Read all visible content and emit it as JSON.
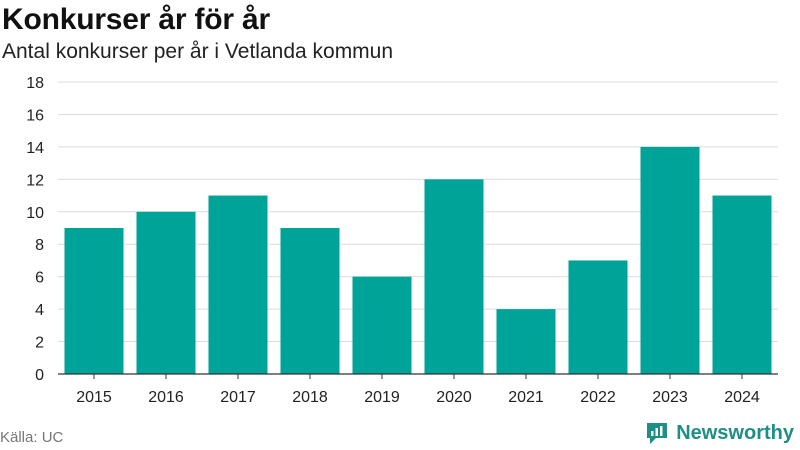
{
  "title": "Konkurser år för år",
  "subtitle": "Antal konkurser per år i Vetlanda kommun",
  "source": "Källa: UC",
  "brand": {
    "name": "Newsworthy",
    "icon": "bar-chart-icon",
    "color": "#1e8f86"
  },
  "chart_data": {
    "type": "bar",
    "categories": [
      "2015",
      "2016",
      "2017",
      "2018",
      "2019",
      "2020",
      "2021",
      "2022",
      "2023",
      "2024"
    ],
    "values": [
      9,
      10,
      11,
      9,
      6,
      12,
      4,
      7,
      14,
      11
    ],
    "ylim": [
      0,
      18
    ],
    "yticks": [
      0,
      2,
      4,
      6,
      8,
      10,
      12,
      14,
      16,
      18
    ],
    "grid": true,
    "bar_color": "#00a398"
  }
}
